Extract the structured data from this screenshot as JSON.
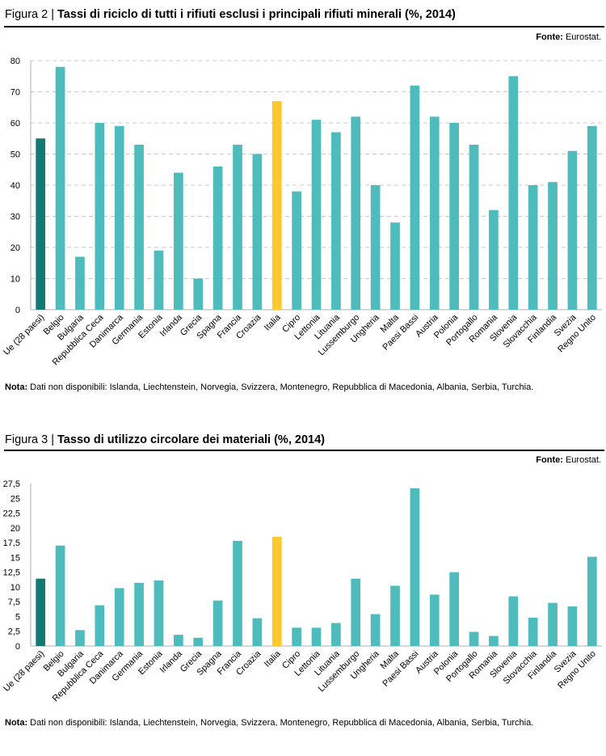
{
  "colors": {
    "eu": "#127a72",
    "country": "#4ebcbc",
    "italy": "#ffc82c",
    "grid": "#c8c8c8",
    "axis": "#b0b0b0"
  },
  "charts": [
    {
      "figure_label": "Figura 2 |",
      "title": "Tassi di riciclo di tutti i rifiuti esclusi i principali rifiuti minerali (%, 2014)",
      "source_label": "Fonte:",
      "source_value": "Eurostat.",
      "note_label": "Nota:",
      "note_text": "Dati non disponibili: Islanda, Liechtenstein, Norvegia, Svizzera, Montenegro, Repubblica di Macedonia, Albania, Serbia, Turchia."
    },
    {
      "figure_label": "Figura 3 |",
      "title": "Tasso di utilizzo circolare dei materiali (%, 2014)",
      "source_label": "Fonte:",
      "source_value": "Eurostat.",
      "note_label": "Nota:",
      "note_text": "Dati non disponibili: Islanda, Liechtenstein, Norvegia, Svizzera, Montenegro, Repubblica di Macedonia, Albania, Serbia, Turchia."
    }
  ],
  "chart_data": [
    {
      "type": "bar",
      "title": "Tassi di riciclo di tutti i rifiuti esclusi i principali rifiuti minerali (%, 2014)",
      "categories": [
        "Ue (28 paesi)",
        "Belgio",
        "Bulgaria",
        "Repubblica Ceca",
        "Danimarca",
        "Germania",
        "Estonia",
        "Irlanda",
        "Grecia",
        "Spagna",
        "Francia",
        "Croazia",
        "Italia",
        "Cipro",
        "Lettonia",
        "Lituania",
        "Lussemburgo",
        "Ungheria",
        "Malta",
        "Paesi Bassi",
        "Austria",
        "Polonia",
        "Portogallo",
        "Romania",
        "Slovenia",
        "Slovacchia",
        "Finlandia",
        "Svezia",
        "Regno Unito"
      ],
      "values": [
        55,
        78,
        17,
        60,
        59,
        53,
        19,
        44,
        10,
        46,
        53,
        50,
        67,
        38,
        61,
        57,
        62,
        40,
        28,
        72,
        62,
        60,
        53,
        32,
        75,
        40,
        41,
        51,
        59
      ],
      "ylim": [
        0,
        80
      ],
      "yticks": [
        "0",
        "10",
        "20",
        "30",
        "40",
        "50",
        "60",
        "70",
        "80"
      ],
      "ytick_values": [
        0,
        10,
        20,
        30,
        40,
        50,
        60,
        70,
        80
      ],
      "grid": true,
      "highlight": {
        "eu": "Ue (28 paesi)",
        "italy": "Italia"
      }
    },
    {
      "type": "bar",
      "title": "Tasso di utilizzo circolare dei materiali (%, 2014)",
      "categories": [
        "Ue (28 paesi)",
        "Belgio",
        "Bulgaria",
        "Repubblica Ceca",
        "Danimarca",
        "Germania",
        "Estonia",
        "Irlanda",
        "Grecia",
        "Spagna",
        "Francia",
        "Croazia",
        "Italia",
        "Cipro",
        "Lettonia",
        "Lituania",
        "Lussemburgo",
        "Ungheria",
        "Malta",
        "Paesi Bassi",
        "Austria",
        "Polonia",
        "Portogallo",
        "Romania",
        "Slovenia",
        "Slovacchia",
        "Finlandia",
        "Svezia",
        "Regno Unito"
      ],
      "values": [
        11.4,
        17,
        2.7,
        6.9,
        9.8,
        10.7,
        11.1,
        1.9,
        1.4,
        7.7,
        17.8,
        4.7,
        18.5,
        3.1,
        3.1,
        3.9,
        11.4,
        5.4,
        10.2,
        26.7,
        8.7,
        12.5,
        2.4,
        1.7,
        8.4,
        4.8,
        7.3,
        6.7,
        15.1
      ],
      "ylim": [
        0,
        27.5
      ],
      "yticks": [
        "0",
        "2,5",
        "5",
        "7,5",
        "10",
        "12,5",
        "15",
        "17,5",
        "20",
        "22,5",
        "25",
        "27,5"
      ],
      "ytick_values": [
        0,
        2.5,
        5,
        7.5,
        10,
        12.5,
        15,
        17.5,
        20,
        22.5,
        25,
        27.5
      ],
      "grid": false,
      "highlight": {
        "eu": "Ue (28 paesi)",
        "italy": "Italia"
      }
    }
  ]
}
